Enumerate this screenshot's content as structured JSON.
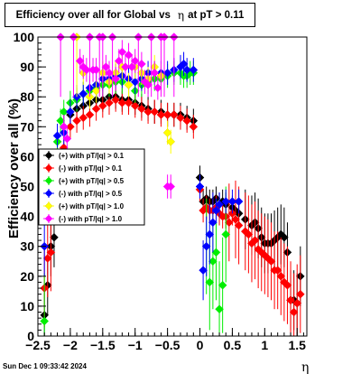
{
  "title": {
    "prefix": "Efficiency over all for Global vs",
    "eta": "η",
    "suffix": "at pT > 0.11"
  },
  "footer": "Sun Dec  1 09:33:42 2024",
  "colors": {
    "frame": "#000000",
    "background": "#ffffff"
  },
  "chart_data": {
    "type": "scatter",
    "xlabel": "η",
    "ylabel": "Efficiency over all (%)",
    "xlim": [
      -2.5,
      1.65
    ],
    "ylim": [
      0,
      100
    ],
    "xticks": [
      -2.5,
      -2,
      -1.5,
      -1,
      -0.5,
      0,
      0.5,
      1,
      1.5
    ],
    "xtick_labels": [
      "−2.5",
      "−2",
      "−1.5",
      "−1",
      "−0.5",
      "0",
      "0.5",
      "1",
      "1.5"
    ],
    "yticks": [
      0,
      10,
      20,
      30,
      40,
      50,
      60,
      70,
      80,
      90,
      100
    ],
    "yticks_labels": [
      "0",
      "10",
      "20",
      "30",
      "40",
      "50",
      "60",
      "70",
      "80",
      "90",
      "100"
    ],
    "grid": false,
    "legend_position": "middle-left",
    "series": [
      {
        "name": "(+) with pT/|q| > 0.1",
        "color": "#000000",
        "points": [
          [
            -2.4,
            7
          ],
          [
            -2.35,
            17
          ],
          [
            -2.3,
            30
          ],
          [
            -2.25,
            33
          ],
          [
            -2.2,
            58
          ],
          [
            -2.1,
            70
          ],
          [
            -2.0,
            74
          ],
          [
            -1.9,
            76
          ],
          [
            -1.8,
            77
          ],
          [
            -1.7,
            78
          ],
          [
            -1.6,
            79
          ],
          [
            -1.5,
            79
          ],
          [
            -1.4,
            80
          ],
          [
            -1.3,
            80
          ],
          [
            -1.2,
            79
          ],
          [
            -1.1,
            79
          ],
          [
            -1.0,
            78
          ],
          [
            -0.9,
            77
          ],
          [
            -0.8,
            76
          ],
          [
            -0.7,
            75
          ],
          [
            -0.6,
            75
          ],
          [
            -0.5,
            74
          ],
          [
            -0.4,
            74
          ],
          [
            -0.3,
            74
          ],
          [
            -0.2,
            73
          ],
          [
            -0.1,
            72
          ],
          [
            0.0,
            53
          ],
          [
            0.05,
            45
          ],
          [
            0.1,
            46
          ],
          [
            0.15,
            45
          ],
          [
            0.2,
            45
          ],
          [
            0.25,
            46
          ],
          [
            0.3,
            44
          ],
          [
            0.35,
            45
          ],
          [
            0.4,
            44
          ],
          [
            0.5,
            43
          ],
          [
            0.55,
            42
          ],
          [
            0.6,
            41
          ],
          [
            0.7,
            39
          ],
          [
            0.8,
            37
          ],
          [
            0.85,
            38
          ],
          [
            0.9,
            36
          ],
          [
            0.95,
            33
          ],
          [
            1.0,
            31
          ],
          [
            1.05,
            31
          ],
          [
            1.1,
            31
          ],
          [
            1.15,
            32
          ],
          [
            1.2,
            33
          ],
          [
            1.25,
            34
          ],
          [
            1.3,
            33
          ],
          [
            1.35,
            28
          ],
          [
            1.4,
            12
          ],
          [
            1.45,
            12
          ],
          [
            1.5,
            11
          ],
          [
            1.55,
            20
          ]
        ]
      },
      {
        "name": "(-) with pT/|q| > 0.1",
        "color": "#ff0000",
        "points": [
          [
            -2.4,
            16
          ],
          [
            -2.35,
            26
          ],
          [
            -2.3,
            28
          ],
          [
            -2.2,
            60
          ],
          [
            -2.1,
            63
          ],
          [
            -2.0,
            70
          ],
          [
            -1.9,
            72
          ],
          [
            -1.8,
            73
          ],
          [
            -1.7,
            74
          ],
          [
            -1.6,
            76
          ],
          [
            -1.5,
            77
          ],
          [
            -1.4,
            78
          ],
          [
            -1.3,
            79
          ],
          [
            -1.2,
            78
          ],
          [
            -1.1,
            78
          ],
          [
            -1.0,
            77
          ],
          [
            -0.9,
            76
          ],
          [
            -0.8,
            75
          ],
          [
            -0.7,
            75
          ],
          [
            -0.6,
            74
          ],
          [
            -0.5,
            74
          ],
          [
            -0.4,
            74
          ],
          [
            -0.3,
            73
          ],
          [
            -0.2,
            72
          ],
          [
            -0.1,
            70
          ],
          [
            0.0,
            49
          ],
          [
            0.05,
            42
          ],
          [
            0.1,
            43
          ],
          [
            0.15,
            42
          ],
          [
            0.2,
            42
          ],
          [
            0.25,
            43
          ],
          [
            0.3,
            41
          ],
          [
            0.35,
            40
          ],
          [
            0.4,
            40
          ],
          [
            0.45,
            38
          ],
          [
            0.5,
            41
          ],
          [
            0.55,
            39
          ],
          [
            0.6,
            37
          ],
          [
            0.7,
            35
          ],
          [
            0.75,
            34
          ],
          [
            0.8,
            31
          ],
          [
            0.85,
            32
          ],
          [
            0.9,
            29
          ],
          [
            0.95,
            28
          ],
          [
            1.0,
            27
          ],
          [
            1.05,
            26
          ],
          [
            1.1,
            25
          ],
          [
            1.15,
            22
          ],
          [
            1.2,
            22
          ],
          [
            1.25,
            20
          ],
          [
            1.3,
            18
          ],
          [
            1.35,
            17
          ],
          [
            1.4,
            12
          ],
          [
            1.45,
            8
          ],
          [
            1.5,
            11
          ],
          [
            1.55,
            14
          ]
        ]
      },
      {
        "name": "(+) with pT/|q| > 0.5",
        "color": "#00ee00",
        "points": [
          [
            -2.4,
            5
          ],
          [
            -2.2,
            65
          ],
          [
            -2.15,
            72
          ],
          [
            -2.1,
            75
          ],
          [
            -2.0,
            78
          ],
          [
            -1.9,
            79
          ],
          [
            -1.8,
            81
          ],
          [
            -1.7,
            82
          ],
          [
            -1.6,
            83
          ],
          [
            -1.5,
            84
          ],
          [
            -1.4,
            84
          ],
          [
            -1.3,
            85
          ],
          [
            -1.2,
            85
          ],
          [
            -1.1,
            84
          ],
          [
            -1.0,
            82
          ],
          [
            -0.9,
            84
          ],
          [
            -0.8,
            85
          ],
          [
            -0.7,
            86
          ],
          [
            -0.6,
            86
          ],
          [
            -0.5,
            87
          ],
          [
            -0.4,
            88
          ],
          [
            -0.3,
            88
          ],
          [
            -0.25,
            87
          ],
          [
            -0.2,
            87
          ],
          [
            -0.15,
            88
          ],
          [
            -0.1,
            88
          ],
          [
            0.1,
            30
          ],
          [
            0.15,
            18
          ],
          [
            0.2,
            25
          ],
          [
            0.25,
            28
          ],
          [
            0.3,
            9
          ],
          [
            0.35,
            17
          ],
          [
            0.4,
            34
          ]
        ]
      },
      {
        "name": "(-) with pT/|q| > 0.5",
        "color": "#0000ff",
        "points": [
          [
            -2.4,
            30
          ],
          [
            -2.2,
            67
          ],
          [
            -2.1,
            68
          ],
          [
            -2.0,
            75
          ],
          [
            -1.9,
            80
          ],
          [
            -1.8,
            81
          ],
          [
            -1.7,
            83
          ],
          [
            -1.6,
            84
          ],
          [
            -1.5,
            86
          ],
          [
            -1.4,
            86
          ],
          [
            -1.3,
            87
          ],
          [
            -1.2,
            87
          ],
          [
            -1.1,
            86
          ],
          [
            -1.0,
            85
          ],
          [
            -0.9,
            86
          ],
          [
            -0.8,
            88
          ],
          [
            -0.7,
            88
          ],
          [
            -0.6,
            88
          ],
          [
            -0.5,
            88
          ],
          [
            -0.4,
            89
          ],
          [
            -0.3,
            90
          ],
          [
            -0.25,
            91
          ],
          [
            -0.2,
            89
          ],
          [
            -0.1,
            89
          ],
          [
            0.0,
            50
          ],
          [
            0.05,
            22
          ],
          [
            0.1,
            30
          ],
          [
            0.15,
            34
          ],
          [
            0.2,
            38
          ],
          [
            0.25,
            42
          ],
          [
            0.3,
            44
          ],
          [
            0.4,
            45
          ],
          [
            0.5,
            45
          ],
          [
            0.6,
            45
          ]
        ]
      },
      {
        "name": "(+) with pT/|q| > 1.0",
        "color": "#ffff00",
        "points": [
          [
            -1.9,
            100
          ],
          [
            -1.8,
            88
          ],
          [
            -1.7,
            80
          ],
          [
            -1.6,
            82
          ],
          [
            -1.5,
            88
          ],
          [
            -1.4,
            85
          ],
          [
            -1.3,
            88
          ],
          [
            -1.2,
            90
          ],
          [
            -1.1,
            84
          ],
          [
            -1.0,
            90
          ],
          [
            -0.9,
            88
          ],
          [
            -0.8,
            86
          ],
          [
            -0.7,
            90
          ],
          [
            -0.6,
            87
          ],
          [
            -0.5,
            68
          ],
          [
            -0.45,
            65
          ]
        ]
      },
      {
        "name": "(-) with pT/|q| > 1.0",
        "color": "#ff00ff",
        "points": [
          [
            -2.15,
            100
          ],
          [
            -2.1,
            70
          ],
          [
            -2.05,
            66
          ],
          [
            -1.95,
            100
          ],
          [
            -1.85,
            92
          ],
          [
            -1.8,
            90
          ],
          [
            -1.75,
            89
          ],
          [
            -1.7,
            100
          ],
          [
            -1.65,
            89
          ],
          [
            -1.6,
            89
          ],
          [
            -1.55,
            100
          ],
          [
            -1.5,
            100
          ],
          [
            -1.45,
            90
          ],
          [
            -1.4,
            88
          ],
          [
            -1.35,
            100
          ],
          [
            -1.3,
            86
          ],
          [
            -1.25,
            92
          ],
          [
            -1.2,
            95
          ],
          [
            -1.15,
            90
          ],
          [
            -1.1,
            94
          ],
          [
            -1.05,
            90
          ],
          [
            -1.0,
            92
          ],
          [
            -0.95,
            100
          ],
          [
            -0.9,
            91
          ],
          [
            -0.85,
            85
          ],
          [
            -0.8,
            84
          ],
          [
            -0.75,
            100
          ],
          [
            -0.7,
            88
          ],
          [
            -0.65,
            83
          ],
          [
            -0.6,
            100
          ],
          [
            -0.55,
            100
          ],
          [
            -0.5,
            50
          ],
          [
            -0.45,
            50
          ],
          [
            -0.4,
            100
          ]
        ]
      }
    ]
  }
}
